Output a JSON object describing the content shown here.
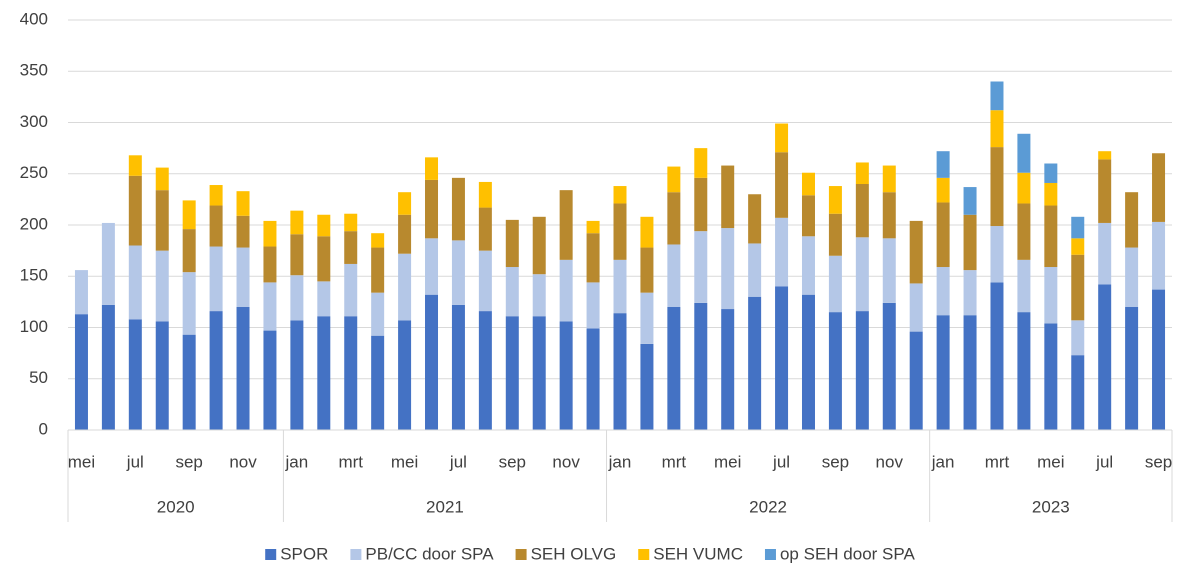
{
  "chart_data": {
    "type": "stacked_bar",
    "categories": [
      "mei",
      null,
      "jul",
      null,
      "sep",
      null,
      "nov",
      null,
      "jan",
      null,
      "mrt",
      null,
      "mei",
      null,
      "jul",
      null,
      "sep",
      null,
      "nov",
      null,
      "jan",
      null,
      "mrt",
      null,
      "mei",
      null,
      "jul",
      null,
      "sep",
      null,
      "nov",
      null,
      "jan",
      null,
      "mrt",
      null,
      "mei",
      null,
      "jul",
      null,
      "sep"
    ],
    "years": [
      "2020",
      "2021",
      "2022",
      "2023"
    ],
    "series": [
      {
        "name": "SPOR",
        "color": "#4472c4",
        "values": [
          113,
          122,
          108,
          106,
          93,
          116,
          120,
          97,
          107,
          111,
          111,
          92,
          107,
          132,
          122,
          116,
          111,
          111,
          106,
          99,
          114,
          84,
          120,
          124,
          118,
          130,
          140,
          132,
          115,
          116,
          124,
          96,
          112,
          112,
          144,
          115,
          104,
          73,
          142,
          120,
          137
        ]
      },
      {
        "name": "PB/CC door SPA",
        "color": "#b4c7e7",
        "values": [
          43,
          80,
          72,
          69,
          61,
          63,
          58,
          47,
          44,
          34,
          51,
          42,
          65,
          55,
          63,
          59,
          48,
          41,
          60,
          45,
          52,
          50,
          61,
          70,
          79,
          52,
          67,
          57,
          55,
          72,
          63,
          47,
          47,
          44,
          55,
          51,
          55,
          34,
          60,
          58,
          66
        ]
      },
      {
        "name": "SEH OLVG",
        "color": "#b8892e",
        "values": [
          0,
          0,
          68,
          59,
          42,
          40,
          31,
          35,
          40,
          44,
          32,
          44,
          38,
          57,
          61,
          42,
          46,
          56,
          68,
          48,
          55,
          44,
          51,
          52,
          61,
          48,
          64,
          40,
          41,
          52,
          45,
          61,
          63,
          54,
          77,
          55,
          60,
          64,
          62,
          54,
          67
        ]
      },
      {
        "name": "SEH VUMC",
        "color": "#ffc000",
        "values": [
          0,
          0,
          20,
          22,
          28,
          20,
          24,
          25,
          23,
          21,
          17,
          14,
          22,
          22,
          0,
          25,
          0,
          0,
          0,
          12,
          17,
          30,
          25,
          29,
          0,
          0,
          28,
          22,
          27,
          21,
          26,
          0,
          24,
          0,
          36,
          30,
          22,
          16,
          8,
          0,
          0
        ]
      },
      {
        "name": "op SEH door SPA",
        "color": "#5b9bd5",
        "values": [
          0,
          0,
          0,
          0,
          0,
          0,
          0,
          0,
          0,
          0,
          0,
          0,
          0,
          0,
          0,
          0,
          0,
          0,
          0,
          0,
          0,
          0,
          0,
          0,
          0,
          0,
          0,
          0,
          0,
          0,
          0,
          0,
          26,
          27,
          28,
          38,
          19,
          21,
          0,
          0,
          0
        ]
      }
    ],
    "ylim": [
      0,
      400
    ],
    "yticks": [
      0,
      50,
      100,
      150,
      200,
      250,
      300,
      350,
      400
    ],
    "grid": true
  }
}
